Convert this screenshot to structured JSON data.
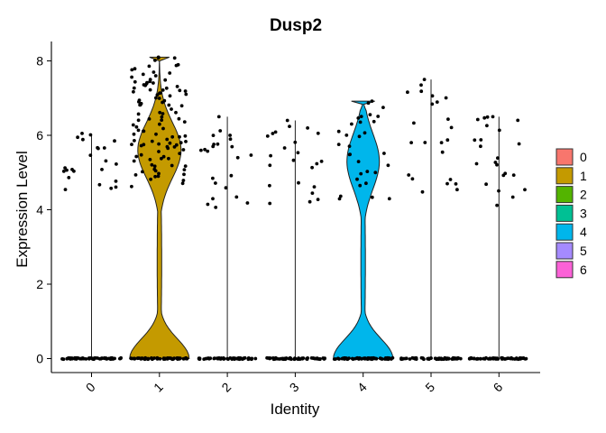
{
  "chart_data": {
    "type": "violin",
    "title": "Dusp2",
    "xlabel": "Identity",
    "ylabel": "Expression Level",
    "ylim": [
      -0.3,
      8.5
    ],
    "yticks": [
      "0",
      "2",
      "4",
      "6",
      "8"
    ],
    "categories": [
      "0",
      "1",
      "2",
      "3",
      "4",
      "5",
      "6"
    ],
    "legend_position": "right",
    "series": [
      {
        "name": "0",
        "color": "#F8766D",
        "max": 6.05,
        "violin": false,
        "expressing_range": [
          4.5,
          6.05
        ]
      },
      {
        "name": "1",
        "color": "#C49A00",
        "max": 8.1,
        "violin": true,
        "expressing_range": [
          4.5,
          8.1
        ]
      },
      {
        "name": "2",
        "color": "#53B400",
        "max": 6.5,
        "violin": false,
        "expressing_range": [
          4.0,
          6.5
        ]
      },
      {
        "name": "3",
        "color": "#00C094",
        "max": 6.4,
        "violin": false,
        "expressing_range": [
          4.0,
          6.4
        ]
      },
      {
        "name": "4",
        "color": "#00B6EB",
        "max": 6.92,
        "violin": true,
        "expressing_range": [
          4.2,
          6.92
        ]
      },
      {
        "name": "5",
        "color": "#A58AFF",
        "max": 7.5,
        "violin": false,
        "expressing_range": [
          4.0,
          7.5
        ]
      },
      {
        "name": "6",
        "color": "#FB61D7",
        "max": 6.5,
        "violin": false,
        "expressing_range": [
          4.1,
          6.5
        ]
      }
    ]
  }
}
